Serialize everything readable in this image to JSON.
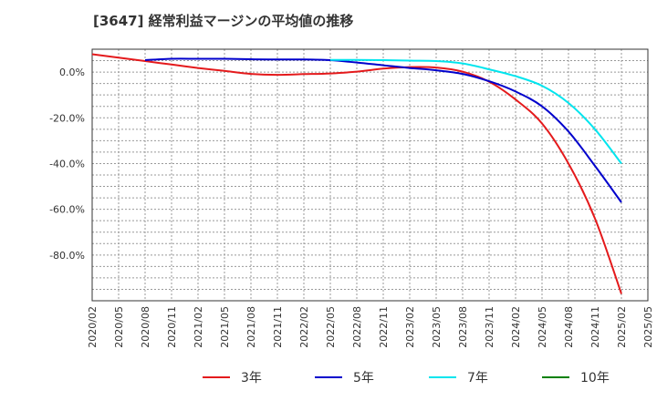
{
  "chart_data": {
    "type": "line",
    "title": "[3647]  経常利益マージンの平均値の推移",
    "xlabel": "",
    "ylabel": "",
    "x_ticks": [
      "2020/02",
      "2020/05",
      "2020/08",
      "2020/11",
      "2021/02",
      "2021/05",
      "2021/08",
      "2021/11",
      "2022/02",
      "2022/05",
      "2022/08",
      "2022/11",
      "2023/02",
      "2023/05",
      "2023/08",
      "2023/11",
      "2024/02",
      "2024/05",
      "2024/08",
      "2024/11",
      "2025/02",
      "2025/05"
    ],
    "y_ticks": [
      0,
      -20,
      -40,
      -60,
      -80
    ],
    "y_tick_labels": [
      "0.0%",
      "-20.0%",
      "-40.0%",
      "-60.0%",
      "-80.0%"
    ],
    "ylim": [
      -100,
      10
    ],
    "grid": true,
    "legend_position": "bottom",
    "series": [
      {
        "name": "3年",
        "color": "#e41a1c",
        "x": [
          "2020/02",
          "2020/05",
          "2020/08",
          "2020/11",
          "2021/02",
          "2021/05",
          "2021/08",
          "2021/11",
          "2022/02",
          "2022/05",
          "2022/08",
          "2022/11",
          "2023/02",
          "2023/05",
          "2023/08",
          "2023/11",
          "2024/02",
          "2024/05",
          "2024/08",
          "2024/11",
          "2025/02"
        ],
        "values": [
          7.8,
          6.3,
          4.8,
          3.3,
          1.8,
          0.5,
          -0.8,
          -1.2,
          -0.9,
          -0.6,
          0.2,
          1.5,
          2.2,
          2.0,
          0.2,
          -4.2,
          -12.0,
          -22.5,
          -40.0,
          -64.0,
          -97.0
        ]
      },
      {
        "name": "5年",
        "color": "#0000cc",
        "x": [
          "2020/08",
          "2020/11",
          "2021/02",
          "2021/05",
          "2021/08",
          "2021/11",
          "2022/02",
          "2022/05",
          "2022/08",
          "2022/11",
          "2023/02",
          "2023/05",
          "2023/08",
          "2023/11",
          "2024/02",
          "2024/05",
          "2024/08",
          "2024/11",
          "2025/02"
        ],
        "values": [
          5.2,
          5.8,
          5.8,
          5.8,
          5.6,
          5.5,
          5.5,
          5.2,
          4.2,
          3.0,
          1.8,
          0.8,
          -0.8,
          -4.0,
          -8.5,
          -15.0,
          -26.0,
          -41.0,
          -57.0
        ]
      },
      {
        "name": "7年",
        "color": "#00e5ee",
        "x": [
          "2022/05",
          "2022/08",
          "2022/11",
          "2023/02",
          "2023/05",
          "2023/08",
          "2023/11",
          "2024/02",
          "2024/05",
          "2024/08",
          "2024/11",
          "2025/02"
        ],
        "values": [
          5.3,
          5.3,
          5.2,
          5.0,
          4.8,
          3.8,
          1.2,
          -1.8,
          -6.0,
          -13.5,
          -25.0,
          -40.0
        ]
      },
      {
        "name": "10年",
        "color": "#008000",
        "x": [],
        "values": []
      }
    ]
  }
}
